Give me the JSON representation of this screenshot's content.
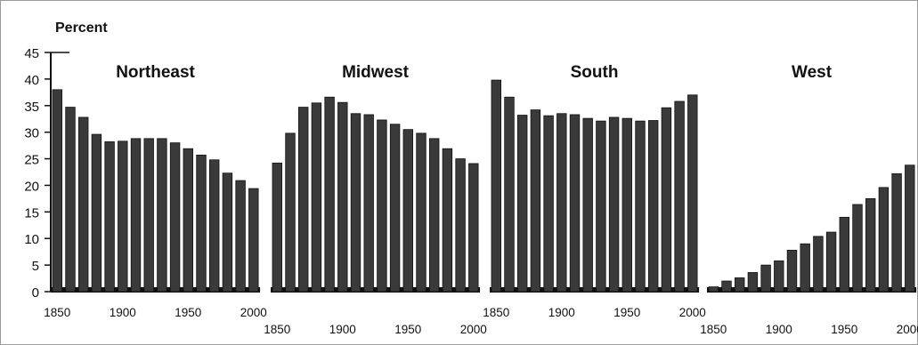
{
  "chart_data": {
    "type": "bar",
    "ylabel": "Percent",
    "ylim": [
      0,
      45
    ],
    "yticks": [
      0,
      5,
      10,
      15,
      20,
      25,
      30,
      35,
      40,
      45
    ],
    "xticks": [
      1850,
      1900,
      1950,
      2000
    ],
    "x": [
      1850,
      1860,
      1870,
      1880,
      1890,
      1900,
      1910,
      1920,
      1930,
      1940,
      1950,
      1960,
      1970,
      1980,
      1990,
      2000
    ],
    "bar_color": "#3a3a3a",
    "grid": false,
    "panels": [
      {
        "name": "Northeast",
        "values": [
          38.0,
          34.7,
          32.8,
          29.6,
          28.2,
          28.3,
          28.8,
          28.8,
          28.8,
          28.0,
          26.9,
          25.7,
          24.8,
          22.3,
          20.9,
          19.4
        ]
      },
      {
        "name": "Midwest",
        "values": [
          24.2,
          29.8,
          34.7,
          35.5,
          36.6,
          35.6,
          33.5,
          33.3,
          32.3,
          31.5,
          30.5,
          29.8,
          28.8,
          26.9,
          25.0,
          24.1
        ]
      },
      {
        "name": "South",
        "values": [
          39.8,
          36.6,
          33.2,
          34.2,
          33.1,
          33.5,
          33.3,
          32.6,
          32.1,
          32.8,
          32.6,
          32.1,
          32.2,
          34.6,
          35.8,
          37.0
        ]
      },
      {
        "name": "West",
        "values": [
          0.9,
          2.0,
          2.6,
          3.6,
          5.0,
          5.8,
          7.8,
          9.0,
          10.4,
          11.2,
          14.0,
          16.4,
          17.5,
          19.6,
          22.2,
          23.8
        ]
      }
    ]
  }
}
